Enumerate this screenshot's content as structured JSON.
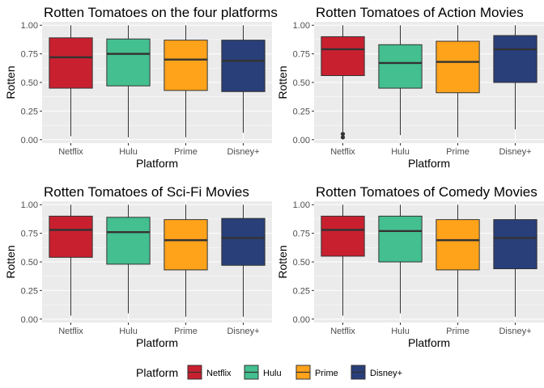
{
  "colors": {
    "Netflix": "#c9202f",
    "Hulu": "#44bf8f",
    "Prime": "#ffa31a",
    "Disney+": "#283f7a",
    "panel_bg": "#ebebeb",
    "grid": "#ffffff"
  },
  "legend": {
    "title": "Platform",
    "items": [
      "Netflix",
      "Hulu",
      "Prime",
      "Disney+"
    ]
  },
  "chart_data": [
    {
      "type": "box",
      "title": "Rotten Tomatoes on the four platforms",
      "xlabel": "Platform",
      "ylabel": "Rotten",
      "ylim": [
        -0.03,
        1.03
      ],
      "yticks": [
        0.0,
        0.25,
        0.5,
        0.75,
        1.0
      ],
      "ytick_labels": [
        "0.00",
        "0.25",
        "0.50",
        "0.75",
        "1.00"
      ],
      "categories": [
        "Netflix",
        "Hulu",
        "Prime",
        "Disney+"
      ],
      "boxes": [
        {
          "min": 0.03,
          "q1": 0.45,
          "median": 0.72,
          "q3": 0.89,
          "max": 1.0,
          "outliers": []
        },
        {
          "min": 0.02,
          "q1": 0.47,
          "median": 0.75,
          "q3": 0.88,
          "max": 1.0,
          "outliers": []
        },
        {
          "min": 0.02,
          "q1": 0.43,
          "median": 0.7,
          "q3": 0.87,
          "max": 1.0,
          "outliers": []
        },
        {
          "min": 0.06,
          "q1": 0.42,
          "median": 0.69,
          "q3": 0.87,
          "max": 1.0,
          "outliers": []
        }
      ],
      "grid": true
    },
    {
      "type": "box",
      "title": "Rotten Tomatoes of Action Movies",
      "xlabel": "Platform",
      "ylabel": "Rotten",
      "ylim": [
        -0.03,
        1.03
      ],
      "yticks": [
        0.0,
        0.25,
        0.5,
        0.75,
        1.0
      ],
      "ytick_labels": [
        "0.00",
        "0.25",
        "0.50",
        "0.75",
        "1.00"
      ],
      "categories": [
        "Netflix",
        "Hulu",
        "Prime",
        "Disney+"
      ],
      "boxes": [
        {
          "min": 0.07,
          "q1": 0.56,
          "median": 0.79,
          "q3": 0.9,
          "max": 1.0,
          "outliers": [
            0.05,
            0.02
          ]
        },
        {
          "min": 0.04,
          "q1": 0.45,
          "median": 0.67,
          "q3": 0.83,
          "max": 1.0,
          "outliers": []
        },
        {
          "min": 0.02,
          "q1": 0.41,
          "median": 0.68,
          "q3": 0.86,
          "max": 1.0,
          "outliers": []
        },
        {
          "min": 0.09,
          "q1": 0.5,
          "median": 0.79,
          "q3": 0.91,
          "max": 1.0,
          "outliers": []
        }
      ],
      "grid": true
    },
    {
      "type": "box",
      "title": "Rotten Tomatoes of Sci-Fi Movies",
      "xlabel": "Platform",
      "ylabel": "Rotten",
      "ylim": [
        -0.03,
        1.03
      ],
      "yticks": [
        0.0,
        0.25,
        0.5,
        0.75,
        1.0
      ],
      "ytick_labels": [
        "0.00",
        "0.25",
        "0.50",
        "0.75",
        "1.00"
      ],
      "categories": [
        "Netflix",
        "Hulu",
        "Prime",
        "Disney+"
      ],
      "boxes": [
        {
          "min": 0.03,
          "q1": 0.54,
          "median": 0.78,
          "q3": 0.9,
          "max": 1.0,
          "outliers": []
        },
        {
          "min": 0.05,
          "q1": 0.48,
          "median": 0.76,
          "q3": 0.89,
          "max": 1.0,
          "outliers": []
        },
        {
          "min": 0.02,
          "q1": 0.43,
          "median": 0.69,
          "q3": 0.87,
          "max": 1.0,
          "outliers": []
        },
        {
          "min": 0.02,
          "q1": 0.47,
          "median": 0.71,
          "q3": 0.88,
          "max": 1.0,
          "outliers": []
        }
      ],
      "grid": true
    },
    {
      "type": "box",
      "title": "Rotten Tomatoes of Comedy Movies",
      "xlabel": "Platform",
      "ylabel": "Rotten",
      "ylim": [
        -0.03,
        1.03
      ],
      "yticks": [
        0.0,
        0.25,
        0.5,
        0.75,
        1.0
      ],
      "ytick_labels": [
        "0.00",
        "0.25",
        "0.50",
        "0.75",
        "1.00"
      ],
      "categories": [
        "Netflix",
        "Hulu",
        "Prime",
        "Disney+"
      ],
      "boxes": [
        {
          "min": 0.03,
          "q1": 0.55,
          "median": 0.78,
          "q3": 0.9,
          "max": 1.0,
          "outliers": []
        },
        {
          "min": 0.05,
          "q1": 0.5,
          "median": 0.77,
          "q3": 0.9,
          "max": 1.0,
          "outliers": []
        },
        {
          "min": 0.02,
          "q1": 0.43,
          "median": 0.69,
          "q3": 0.87,
          "max": 1.0,
          "outliers": []
        },
        {
          "min": 0.02,
          "q1": 0.44,
          "median": 0.71,
          "q3": 0.87,
          "max": 1.0,
          "outliers": []
        }
      ],
      "grid": true
    }
  ]
}
